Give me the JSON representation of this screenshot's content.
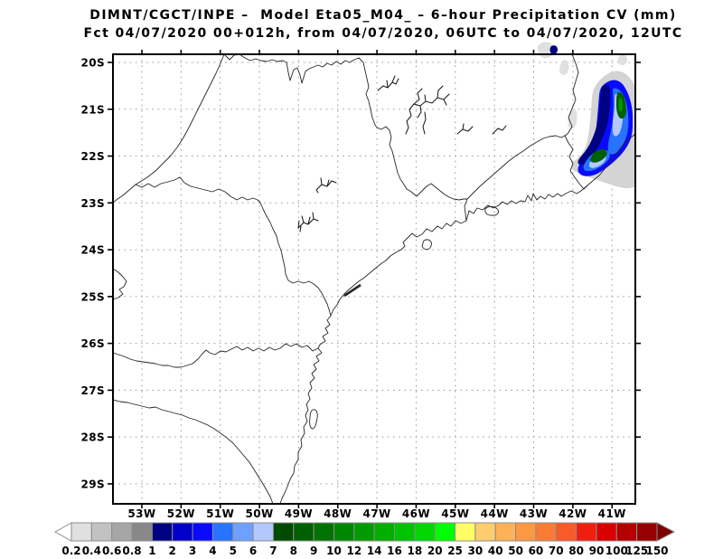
{
  "title": {
    "line1": "DIMNT/CGCT/INPE –  Model Eta05_M04_ – 6–hour Precipitation CV (mm)",
    "line2": "Fct 04/07/2020 00+012h, from 04/07/2020, 06UTC to 04/07/2020, 12UTC"
  },
  "map": {
    "lat_labels": [
      "20S",
      "21S",
      "22S",
      "23S",
      "24S",
      "25S",
      "26S",
      "27S",
      "28S",
      "29S"
    ],
    "lon_labels": [
      "53W",
      "52W",
      "51W",
      "50W",
      "49W",
      "48W",
      "47W",
      "46W",
      "45W",
      "44W",
      "43W",
      "42W",
      "41W"
    ]
  },
  "colorbar": {
    "labels": [
      "0.2",
      "0.4",
      "0.6",
      "0.8",
      "1",
      "2",
      "3",
      "4",
      "5",
      "6",
      "7",
      "8",
      "9",
      "10",
      "12",
      "14",
      "16",
      "18",
      "20",
      "25",
      "30",
      "40",
      "50",
      "60",
      "70",
      "80",
      "90",
      "100",
      "125",
      "150"
    ],
    "colors": [
      "#e0e0e0",
      "#c2c2c2",
      "#a6a6a6",
      "#888888",
      "#000082",
      "#0000c8",
      "#0a0aff",
      "#2873ff",
      "#6ea0ff",
      "#b4c8ff",
      "#004b00",
      "#005f00",
      "#007300",
      "#008700",
      "#009b00",
      "#00af00",
      "#00c300",
      "#00d700",
      "#00ff00",
      "#ffff64",
      "#fdcd6e",
      "#fdb257",
      "#fd9843",
      "#fc7a36",
      "#f85a28",
      "#f01e0f",
      "#d80000",
      "#b40000",
      "#960000"
    ],
    "left_arrow_color": "#ffffff",
    "right_arrow_color": "#7d0000",
    "outline_color": "#8c8c8c"
  },
  "chart_data": {
    "type": "heatmap",
    "title": "Eta05_M04 model 6-hour accumulated precipitation forecast (mm)",
    "units": "mm",
    "levels": [
      0.2,
      0.4,
      0.6,
      0.8,
      1,
      2,
      3,
      4,
      5,
      6,
      7,
      8,
      9,
      10,
      12,
      14,
      16,
      18,
      20,
      25,
      30,
      40,
      50,
      60,
      70,
      80,
      90,
      100,
      125,
      150
    ],
    "x_axis_ticks": [
      "53W",
      "52W",
      "51W",
      "50W",
      "49W",
      "48W",
      "47W",
      "46W",
      "45W",
      "44W",
      "43W",
      "42W",
      "41W"
    ],
    "y_axis_ticks": [
      "20S",
      "21S",
      "22S",
      "23S",
      "24S",
      "25S",
      "26S",
      "27S",
      "28S",
      "29S"
    ],
    "grid": true,
    "features": [
      {
        "name": "coastal-precip-band",
        "location": "elongated NNE-SSW band near 41W-41.8W between about 20.3S and 22.5S",
        "intensity": "light gray fringe 0.2-1 mm, blues 1-7 mm, two dark green cores 7-12 mm"
      },
      {
        "name": "small-cell-north",
        "location": "near 20S between 42.5W and 42W at top frame",
        "intensity": "0.2-0.8 mm gray with one 1-2 mm dark blue pixel"
      },
      {
        "name": "small-cells-scattered",
        "location": "near 20.2S 42.2W and 21.3S 42W",
        "intensity": "0.2-0.6 mm"
      }
    ]
  }
}
